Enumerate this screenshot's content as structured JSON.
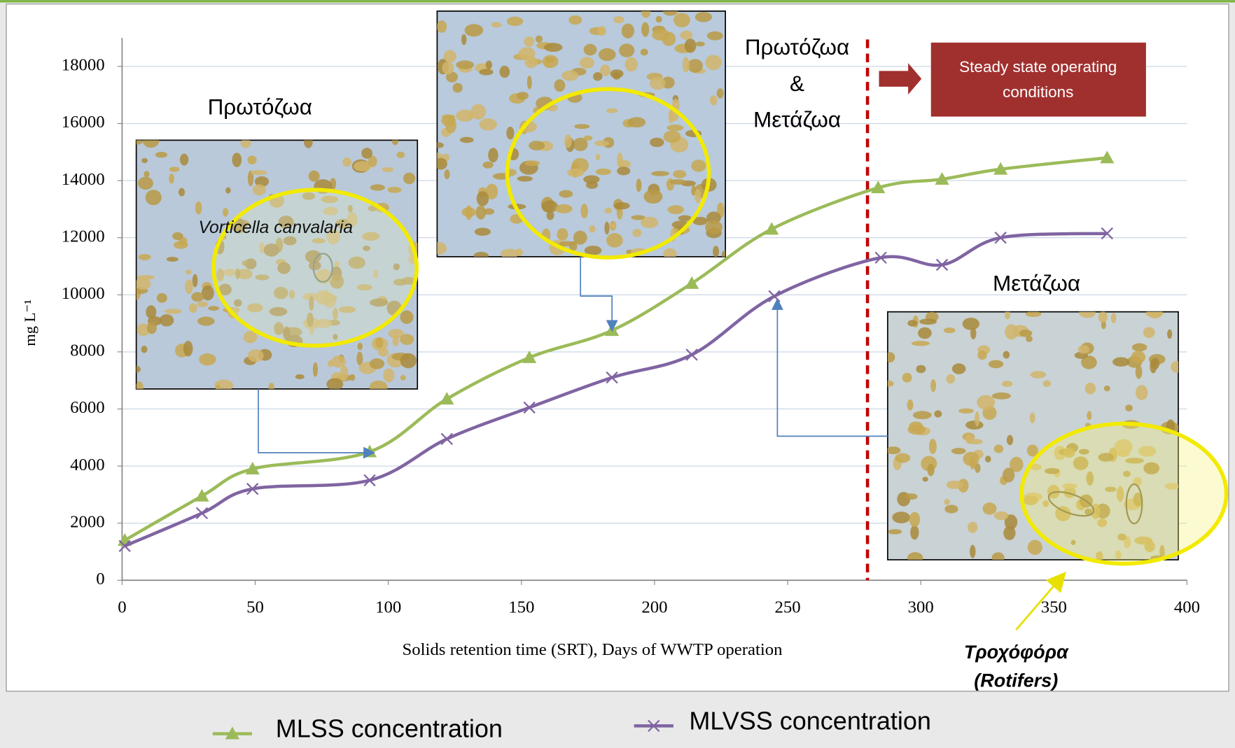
{
  "chart_data": {
    "type": "line",
    "x_label": "Solids retention time (SRT), Days of WWTP operation",
    "y_label": "mg L⁻¹",
    "xlim": [
      0,
      400
    ],
    "xticks": [
      0,
      50,
      100,
      150,
      200,
      250,
      300,
      350,
      400
    ],
    "ylim": [
      0,
      19000
    ],
    "yticks": [
      0,
      2000,
      4000,
      6000,
      8000,
      10000,
      12000,
      14000,
      16000,
      18000
    ],
    "grid": true,
    "series": [
      {
        "name": "MLSS concentration",
        "color": "#9bbb59",
        "marker": "triangle",
        "x": [
          1,
          30,
          49,
          93,
          122,
          153,
          184,
          214,
          244,
          284,
          308,
          330,
          370
        ],
        "values": [
          1400,
          2950,
          3900,
          4500,
          6350,
          7800,
          8750,
          10400,
          12300,
          13750,
          14050,
          14400,
          14800
        ]
      },
      {
        "name": "MLVSS concentration",
        "color": "#8064a2",
        "marker": "x",
        "x": [
          1,
          30,
          49,
          93,
          122,
          153,
          184,
          214,
          245,
          285,
          308,
          330,
          370
        ],
        "values": [
          1200,
          2350,
          3200,
          3500,
          4950,
          6050,
          7100,
          7900,
          9950,
          11300,
          11050,
          12000,
          12150
        ]
      }
    ],
    "steady_state_x": 280,
    "annotations": {
      "protozoa": "Πρωτόζωα",
      "protozoa_metazoa": [
        "Πρωτόζωα",
        "&",
        "Μετάζωα"
      ],
      "steady_state": [
        "Steady state operating",
        "conditions"
      ],
      "metazoa": "Μετάζωα",
      "vorticella": "Vorticella canvalaria",
      "rotifers": [
        "Τροχόφόρα",
        "(Rotifers)"
      ]
    }
  }
}
